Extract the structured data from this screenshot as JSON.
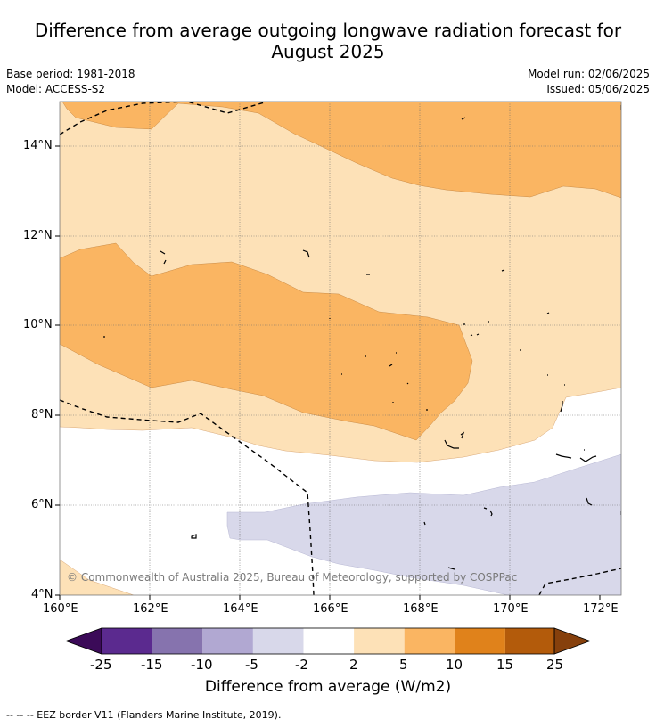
{
  "title_line1": "Difference from average outgoing longwave radiation forecast for",
  "title_line2": "August 2025",
  "base_period": "Base period: 1981-2018",
  "model": "Model: ACCESS-S2",
  "model_run": "Model run: 02/06/2025",
  "issued": "Issued: 05/06/2025",
  "copyright": "© Commonwealth of Australia 2025, Bureau of Meteorology, supported by COSPPac",
  "lon_labels": [
    "160°E",
    "162°E",
    "164°E",
    "166°E",
    "168°E",
    "170°E",
    "172°E"
  ],
  "lat_labels": [
    "14°N",
    "12°N",
    "10°N",
    "8°N",
    "6°N",
    "4°N"
  ],
  "colorbar": {
    "ticks": [
      "-25",
      "-15",
      "-10",
      "-5",
      "-2",
      "2",
      "5",
      "10",
      "15",
      "25"
    ],
    "colors": [
      "#5b2a8f",
      "#8673ae",
      "#b1a8d2",
      "#d8d8ea",
      "#ffffff",
      "#fde1b7",
      "#fab562",
      "#e0821b",
      "#b35b0b"
    ],
    "under_color": "#3b0a58",
    "over_color": "#86400c",
    "label": "Difference from average (W/m2)"
  },
  "legend_note": "--  --  -- EEZ border V11 (Flanders Marine Institute, 2019).",
  "map_colors": {
    "light_orange": "#fde1b7",
    "mid_orange": "#fab562",
    "lavender": "#d8d8ea",
    "eez": "#000000"
  }
}
